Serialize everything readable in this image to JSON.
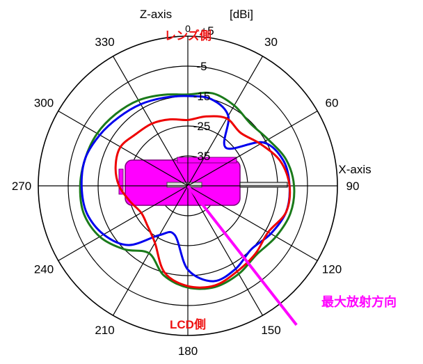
{
  "chart_data": {
    "type": "polar-line",
    "unit": "[dBi]",
    "r_range": [
      -45,
      5
    ],
    "r_ticks": [
      5,
      -5,
      -15,
      -25,
      -35
    ],
    "r_tick_labels": [
      "+5",
      "-5",
      "-15",
      "-25",
      "-35"
    ],
    "angle_ticks": [
      0,
      30,
      60,
      90,
      120,
      150,
      180,
      210,
      240,
      270,
      300,
      330
    ],
    "angle_labels": [
      "0",
      "30",
      "60",
      "90",
      "120",
      "150",
      "180",
      "210",
      "240",
      "270",
      "300",
      "330"
    ],
    "zero_direction": "top",
    "direction": "clockwise",
    "axis_labels": {
      "z": "Z-axis",
      "x": "X-axis"
    },
    "annotations": {
      "top": "レンズ側",
      "bottom": "LCD側",
      "max_direction": "最大放射方向"
    },
    "max_direction_angle": 142,
    "series": [
      {
        "color": "#1a7a1a",
        "angles": [
          0,
          15,
          30,
          45,
          60,
          75,
          90,
          105,
          120,
          135,
          150,
          165,
          180,
          195,
          210,
          225,
          240,
          255,
          270,
          285,
          300,
          315,
          330,
          345
        ],
        "values": [
          -14.5,
          -13,
          -14,
          -15.5,
          -14,
          -11,
          -9.5,
          -9.5,
          -11,
          -12.5,
          -11,
          -10,
          -11,
          -14,
          -19,
          -15,
          -11,
          -9,
          -9,
          -9.5,
          -10,
          -11,
          -12,
          -13.5
        ]
      },
      {
        "color": "#0000ee",
        "angles": [
          0,
          15,
          30,
          45,
          60,
          75,
          90,
          105,
          120,
          135,
          150,
          165,
          180,
          195,
          210,
          225,
          240,
          255,
          270,
          285,
          300,
          315,
          330,
          345
        ],
        "values": [
          -15,
          -15,
          -18,
          -27,
          -16,
          -12,
          -11,
          -11,
          -13,
          -15,
          -13,
          -12,
          -17,
          -28,
          -26,
          -17,
          -12.5,
          -10,
          -9.5,
          -9.5,
          -11,
          -12.5,
          -13.5,
          -14.5
        ]
      },
      {
        "color": "#ee0000",
        "angles": [
          0,
          15,
          30,
          45,
          60,
          75,
          90,
          105,
          120,
          135,
          150,
          165,
          180,
          195,
          210,
          225,
          240,
          255,
          270,
          285,
          300,
          315,
          330,
          345
        ],
        "values": [
          -23,
          -21,
          -19,
          -20,
          -17,
          -13,
          -11,
          -11,
          -14,
          -13,
          -12,
          -10.5,
          -11.5,
          -15,
          -23,
          -26,
          -27,
          -25,
          -22,
          -20,
          -19,
          -20.5,
          -21,
          -22
        ]
      }
    ]
  }
}
